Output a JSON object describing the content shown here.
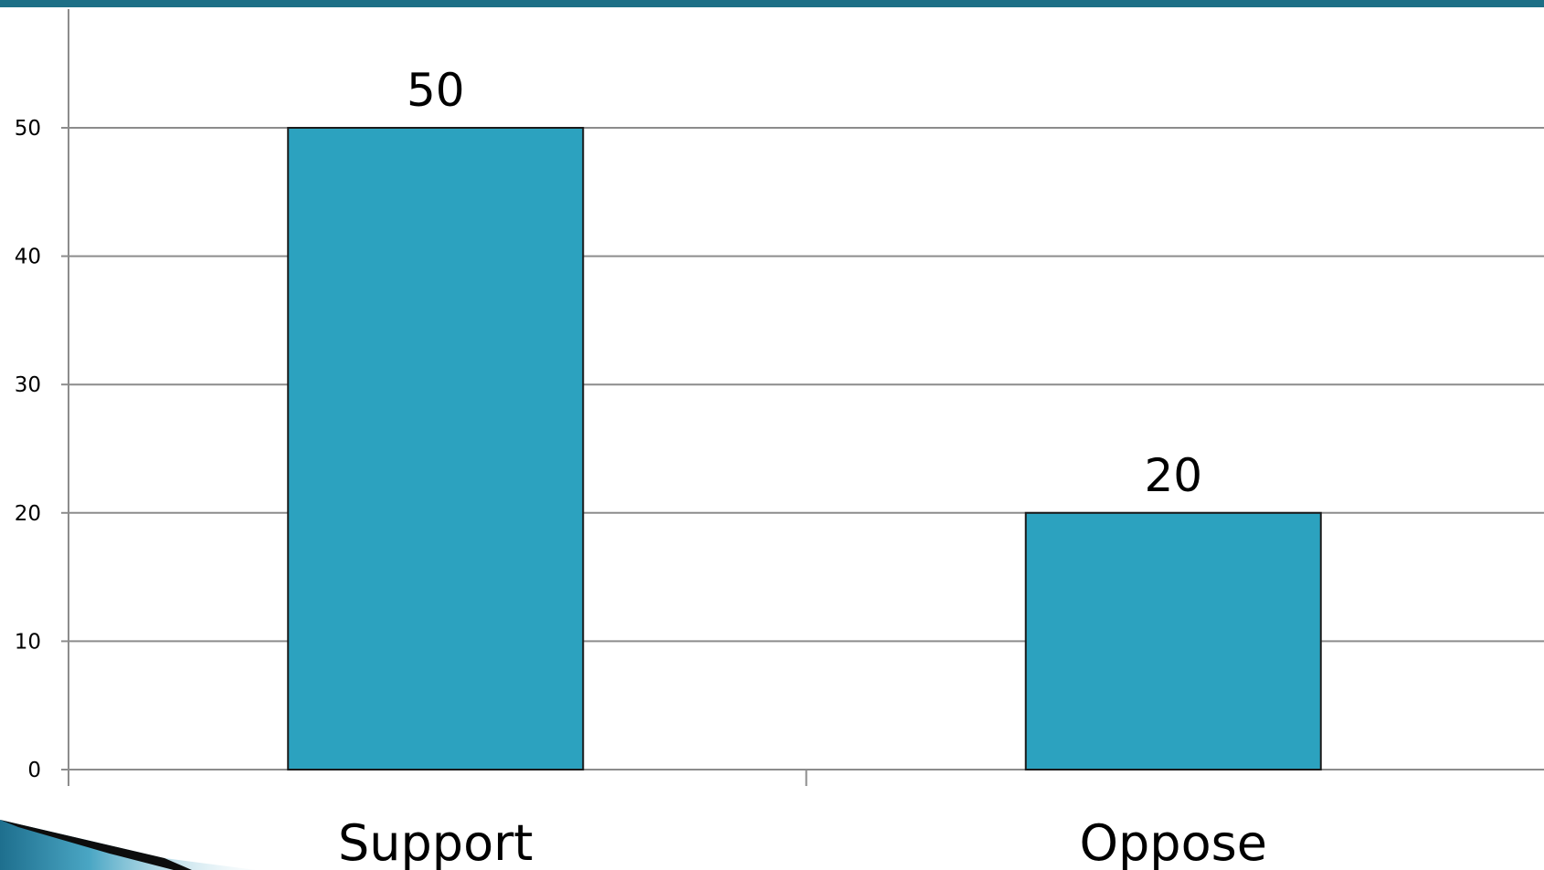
{
  "chart_data": {
    "type": "bar",
    "categories": [
      "Support",
      "Oppose"
    ],
    "values": [
      50,
      20
    ],
    "data_labels": [
      "50",
      "20"
    ],
    "title": "",
    "xlabel": "",
    "ylabel": "",
    "ylim": [
      0,
      50
    ],
    "yticks": [
      "0",
      "10",
      "20",
      "30",
      "40",
      "50"
    ],
    "grid": true,
    "legend": "none"
  },
  "colors": {
    "bar_fill": "#2ca2bf",
    "bar_stroke": "#1a1a1a",
    "gridline": "#8c8c8c",
    "axis": "#8c8c8c",
    "top_rule": "#1d6f86",
    "corner_decor": "#1e6f8e"
  }
}
